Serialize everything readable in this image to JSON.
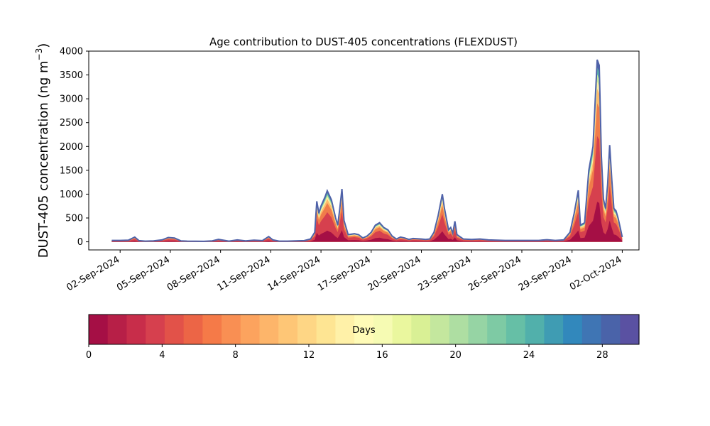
{
  "chart_data": [
    {
      "type": "area",
      "title": "Age contribution to DUST-405 concentrations (FLEXDUST)",
      "ylabel_main": "DUST-405 concentration (ng m",
      "ylabel_sup": "−3",
      "ylabel_close": ")",
      "xlabel": "",
      "x_is_date": true,
      "xlim": [
        "2024-08-31T03:00",
        "2024-10-03T00:00"
      ],
      "ylim": [
        -170,
        4000
      ],
      "yticks": [
        0,
        500,
        1000,
        1500,
        2000,
        2500,
        3000,
        3500,
        4000
      ],
      "xticks": [
        {
          "date": "2024-09-02",
          "label": "02-Sep-2024"
        },
        {
          "date": "2024-09-05",
          "label": "05-Sep-2024"
        },
        {
          "date": "2024-09-08",
          "label": "08-Sep-2024"
        },
        {
          "date": "2024-09-11",
          "label": "11-Sep-2024"
        },
        {
          "date": "2024-09-14",
          "label": "14-Sep-2024"
        },
        {
          "date": "2024-09-17",
          "label": "17-Sep-2024"
        },
        {
          "date": "2024-09-20",
          "label": "20-Sep-2024"
        },
        {
          "date": "2024-09-23",
          "label": "23-Sep-2024"
        },
        {
          "date": "2024-09-26",
          "label": "26-Sep-2024"
        },
        {
          "date": "2024-09-29",
          "label": "29-Sep-2024"
        },
        {
          "date": "2024-10-02",
          "label": "02-Oct-2024"
        }
      ],
      "grid": false,
      "total": [
        [
          "2024-09-01T12:00",
          30
        ],
        [
          "2024-09-02T00:00",
          30
        ],
        [
          "2024-09-02T12:00",
          35
        ],
        [
          "2024-09-02T21:00",
          100
        ],
        [
          "2024-09-03T03:00",
          25
        ],
        [
          "2024-09-03T12:00",
          15
        ],
        [
          "2024-09-04T00:00",
          20
        ],
        [
          "2024-09-04T12:00",
          40
        ],
        [
          "2024-09-04T21:00",
          90
        ],
        [
          "2024-09-05T06:00",
          80
        ],
        [
          "2024-09-05T15:00",
          20
        ],
        [
          "2024-09-06T00:00",
          15
        ],
        [
          "2024-09-07T00:00",
          10
        ],
        [
          "2024-09-07T12:00",
          20
        ],
        [
          "2024-09-07T21:00",
          50
        ],
        [
          "2024-09-08T06:00",
          30
        ],
        [
          "2024-09-08T12:00",
          15
        ],
        [
          "2024-09-09T00:00",
          40
        ],
        [
          "2024-09-09T12:00",
          20
        ],
        [
          "2024-09-10T00:00",
          35
        ],
        [
          "2024-09-10T12:00",
          25
        ],
        [
          "2024-09-10T21:00",
          110
        ],
        [
          "2024-09-11T03:00",
          40
        ],
        [
          "2024-09-11T12:00",
          15
        ],
        [
          "2024-09-12T00:00",
          15
        ],
        [
          "2024-09-12T12:00",
          20
        ],
        [
          "2024-09-13T00:00",
          25
        ],
        [
          "2024-09-13T09:00",
          60
        ],
        [
          "2024-09-13T15:00",
          200
        ],
        [
          "2024-09-13T18:00",
          850
        ],
        [
          "2024-09-13T21:00",
          600
        ],
        [
          "2024-09-14T00:00",
          750
        ],
        [
          "2024-09-14T06:00",
          950
        ],
        [
          "2024-09-14T09:00",
          1070
        ],
        [
          "2024-09-14T15:00",
          880
        ],
        [
          "2024-09-14T21:00",
          500
        ],
        [
          "2024-09-15T00:00",
          350
        ],
        [
          "2024-09-15T03:00",
          700
        ],
        [
          "2024-09-15T06:00",
          1110
        ],
        [
          "2024-09-15T09:00",
          450
        ],
        [
          "2024-09-15T15:00",
          150
        ],
        [
          "2024-09-16T00:00",
          170
        ],
        [
          "2024-09-16T06:00",
          150
        ],
        [
          "2024-09-16T12:00",
          80
        ],
        [
          "2024-09-16T18:00",
          120
        ],
        [
          "2024-09-17T00:00",
          200
        ],
        [
          "2024-09-17T06:00",
          350
        ],
        [
          "2024-09-17T12:00",
          400
        ],
        [
          "2024-09-17T18:00",
          300
        ],
        [
          "2024-09-18T00:00",
          250
        ],
        [
          "2024-09-18T06:00",
          120
        ],
        [
          "2024-09-18T12:00",
          60
        ],
        [
          "2024-09-18T18:00",
          100
        ],
        [
          "2024-09-19T00:00",
          80
        ],
        [
          "2024-09-19T06:00",
          50
        ],
        [
          "2024-09-19T12:00",
          70
        ],
        [
          "2024-09-20T00:00",
          60
        ],
        [
          "2024-09-20T06:00",
          50
        ],
        [
          "2024-09-20T12:00",
          60
        ],
        [
          "2024-09-20T18:00",
          200
        ],
        [
          "2024-09-21T00:00",
          550
        ],
        [
          "2024-09-21T06:00",
          1000
        ],
        [
          "2024-09-21T09:00",
          700
        ],
        [
          "2024-09-21T15:00",
          250
        ],
        [
          "2024-09-21T18:00",
          300
        ],
        [
          "2024-09-21T21:00",
          180
        ],
        [
          "2024-09-22T00:00",
          430
        ],
        [
          "2024-09-22T03:00",
          150
        ],
        [
          "2024-09-22T12:00",
          60
        ],
        [
          "2024-09-23T00:00",
          50
        ],
        [
          "2024-09-23T12:00",
          60
        ],
        [
          "2024-09-24T00:00",
          40
        ],
        [
          "2024-09-25T00:00",
          30
        ],
        [
          "2024-09-26T00:00",
          30
        ],
        [
          "2024-09-27T00:00",
          30
        ],
        [
          "2024-09-27T12:00",
          45
        ],
        [
          "2024-09-28T00:00",
          30
        ],
        [
          "2024-09-28T12:00",
          40
        ],
        [
          "2024-09-28T21:00",
          200
        ],
        [
          "2024-09-29T03:00",
          600
        ],
        [
          "2024-09-29T09:00",
          1080
        ],
        [
          "2024-09-29T12:00",
          350
        ],
        [
          "2024-09-29T18:00",
          400
        ],
        [
          "2024-09-30T00:00",
          1500
        ],
        [
          "2024-09-30T06:00",
          2000
        ],
        [
          "2024-09-30T09:00",
          2900
        ],
        [
          "2024-09-30T12:00",
          3820
        ],
        [
          "2024-09-30T15:00",
          3700
        ],
        [
          "2024-09-30T18:00",
          1800
        ],
        [
          "2024-09-30T21:00",
          900
        ],
        [
          "2024-10-01T00:00",
          700
        ],
        [
          "2024-10-01T03:00",
          1200
        ],
        [
          "2024-10-01T06:00",
          2030
        ],
        [
          "2024-10-01T09:00",
          1300
        ],
        [
          "2024-10-01T12:00",
          700
        ],
        [
          "2024-10-01T15:00",
          650
        ],
        [
          "2024-10-01T18:00",
          500
        ],
        [
          "2024-10-01T21:00",
          300
        ],
        [
          "2024-10-02T00:00",
          100
        ]
      ],
      "age_split": [
        {
          "max_age_days": 2,
          "color": "#a50f45",
          "fraction": 0.22
        },
        {
          "max_age_days": 4,
          "color": "#d6404e",
          "fraction": 0.36
        },
        {
          "max_age_days": 6,
          "color": "#f07c4a",
          "fraction": 0.18
        },
        {
          "max_age_days": 10,
          "color": "#fdbb6a",
          "fraction": 0.08
        },
        {
          "max_age_days": 16,
          "color": "#fff1a8",
          "fraction": 0.04
        },
        {
          "max_age_days": 22,
          "color": "#c7e99e",
          "fraction": 0.04
        },
        {
          "max_age_days": 26,
          "color": "#5cb7a9",
          "fraction": 0.04
        },
        {
          "max_age_days": 30,
          "color": "#4f62a9",
          "fraction": 0.04
        }
      ],
      "outline_color": "#4f62a9"
    },
    {
      "type": "colorbar",
      "label": "Days",
      "range": [
        0,
        30
      ],
      "ticks": [
        0,
        4,
        8,
        12,
        16,
        20,
        24,
        28
      ],
      "colors": [
        "#a50f45",
        "#b71f47",
        "#c82d4a",
        "#d6404e",
        "#e25249",
        "#ec6546",
        "#f57a48",
        "#f98f53",
        "#fca35e",
        "#fdb56a",
        "#fec676",
        "#fed685",
        "#fee593",
        "#fff1a8",
        "#fffbb7",
        "#f6fbb3",
        "#eaf79e",
        "#d9f095",
        "#c4e79e",
        "#aedea2",
        "#96d4a4",
        "#7ecaa4",
        "#66bfa6",
        "#51b0ab",
        "#3f9cb3",
        "#3288bc",
        "#3f75b4",
        "#4a63a9",
        "#5a51a2"
      ]
    }
  ]
}
